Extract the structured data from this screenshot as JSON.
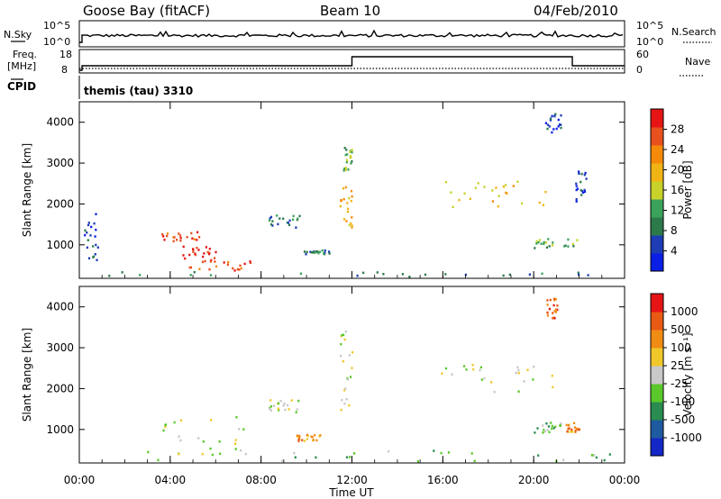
{
  "header": {
    "station": "Goose Bay (fitACF)",
    "beam": "Beam 10",
    "date": "04/Feb/2010"
  },
  "panels": {
    "nsky": {
      "label": "N.Sky",
      "right_label": "N.Search",
      "left_ticks": [
        "10^5",
        "10^0"
      ],
      "right_ticks": [
        "10^5",
        "10^0"
      ]
    },
    "freq": {
      "label_line1": "Freq.",
      "label_line2": "[MHz]",
      "right_label": "Nave",
      "left_ticks": [
        "18",
        "8"
      ],
      "right_ticks": [
        "60",
        "0"
      ],
      "step_hours": [
        12.0,
        21.7
      ]
    },
    "cpid": {
      "label": "CPID",
      "text": "themis (tau) 3310"
    },
    "power": {
      "ylabel": "Slant Range [km]",
      "yticks": [
        "4000",
        "3000",
        "2000",
        "1000"
      ],
      "colorbar_label": "Power [dB]",
      "colorbar_ticks": [
        "28",
        "24",
        "20",
        "16",
        "12",
        "8",
        "4"
      ],
      "colors": [
        "#0a1ee6",
        "#1e3cb4",
        "#2c7a4a",
        "#3aa25a",
        "#c8d22a",
        "#f0b414",
        "#f58a0a",
        "#e8501e",
        "#e61414"
      ]
    },
    "velocity": {
      "ylabel": "Slant Range [km]",
      "yticks": [
        "4000",
        "3000",
        "2000",
        "1000"
      ],
      "colorbar_label": "Velocity [m s⁻¹]",
      "colorbar_ticks": [
        "1000",
        "500",
        "100",
        "25",
        "-25",
        "-100",
        "-500",
        "-1000"
      ],
      "colors": [
        "#1428c8",
        "#1e5aa0",
        "#2a8c50",
        "#5ac82a",
        "#c8c8c8",
        "#f0c82a",
        "#f08c14",
        "#e85a14",
        "#e61414"
      ]
    }
  },
  "xaxis": {
    "title": "Time UT",
    "ticks": [
      "00:00",
      "04:00",
      "08:00",
      "12:00",
      "16:00",
      "20:00",
      "00:00"
    ]
  },
  "chart_data": [
    {
      "type": "heatmap",
      "title": "Power [dB]",
      "xlabel": "Time UT",
      "ylabel": "Slant Range [km]",
      "xlim": [
        0,
        24
      ],
      "ylim": [
        180,
        4500
      ],
      "zlim": [
        0,
        32
      ],
      "scatter_regions": [
        {
          "t0": 3.6,
          "t1": 5.3,
          "r0": 1050,
          "r1": 1300,
          "level": 7
        },
        {
          "t0": 4.5,
          "t1": 6.0,
          "r0": 600,
          "r1": 950,
          "level": 8
        },
        {
          "t0": 4.8,
          "t1": 7.5,
          "r0": 350,
          "r1": 600,
          "level": 7
        },
        {
          "t0": 11.4,
          "t1": 12.0,
          "r0": 1400,
          "r1": 2400,
          "level": 5
        },
        {
          "t0": 11.6,
          "t1": 12.0,
          "r0": 2800,
          "r1": 3400,
          "level": 3
        },
        {
          "t0": 15.8,
          "t1": 20.8,
          "r0": 1900,
          "r1": 2600,
          "level": 5
        },
        {
          "t0": 20.0,
          "t1": 22.0,
          "r0": 900,
          "r1": 1150,
          "level": 3
        },
        {
          "t0": 8.3,
          "t1": 9.7,
          "r0": 1400,
          "r1": 1700,
          "level": 2
        },
        {
          "t0": 9.8,
          "t1": 11.0,
          "r0": 750,
          "r1": 850,
          "level": 2
        },
        {
          "t0": 0.0,
          "t1": 24.0,
          "r0": 200,
          "r1": 320,
          "level": 2
        },
        {
          "t0": 20.5,
          "t1": 21.2,
          "r0": 3700,
          "r1": 4200,
          "level": 1
        },
        {
          "t0": 21.8,
          "t1": 22.3,
          "r0": 2000,
          "r1": 2800,
          "level": 1
        },
        {
          "t0": 0.2,
          "t1": 0.8,
          "r0": 600,
          "r1": 1800,
          "level": 1
        }
      ]
    },
    {
      "type": "heatmap",
      "title": "Velocity [m s⁻¹]",
      "xlabel": "Time UT",
      "ylabel": "Slant Range [km]",
      "xlim": [
        0,
        24
      ],
      "ylim": [
        180,
        4500
      ],
      "zlim": [
        -1000,
        1000
      ],
      "scatter_regions": [
        {
          "t0": 3.6,
          "t1": 7.5,
          "r0": 350,
          "r1": 1300,
          "level": 4
        },
        {
          "t0": 11.4,
          "t1": 12.0,
          "r0": 1400,
          "r1": 3400,
          "level": 4
        },
        {
          "t0": 15.8,
          "t1": 20.8,
          "r0": 1900,
          "r1": 2600,
          "level": 4
        },
        {
          "t0": 20.0,
          "t1": 21.4,
          "r0": 900,
          "r1": 1150,
          "level": 3
        },
        {
          "t0": 21.4,
          "t1": 22.0,
          "r0": 900,
          "r1": 1150,
          "level": 6
        },
        {
          "t0": 20.5,
          "t1": 21.0,
          "r0": 3700,
          "r1": 4200,
          "level": 7
        },
        {
          "t0": 9.5,
          "t1": 10.6,
          "r0": 700,
          "r1": 850,
          "level": 6
        },
        {
          "t0": 0.0,
          "t1": 24.0,
          "r0": 200,
          "r1": 480,
          "level": 3
        },
        {
          "t0": 8.3,
          "t1": 9.7,
          "r0": 1400,
          "r1": 1700,
          "level": 4
        }
      ]
    }
  ]
}
